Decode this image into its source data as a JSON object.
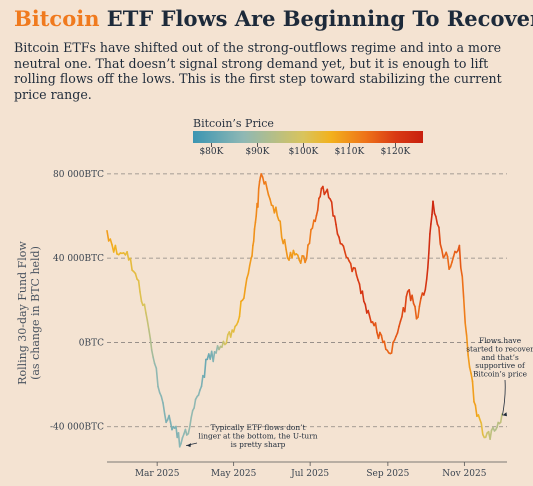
{
  "header": {
    "title_accent": "Bitcoin",
    "title_rest": " ETF Flows Are Beginning To Recover",
    "subtitle": "Bitcoin ETFs have shifted out of the strong-outflows regime and into a more neutral one. That doesn’t signal strong demand yet, but it is enough to lift rolling flows off the lows. This is the first step toward stabilizing the current price range."
  },
  "colors": {
    "accent": "#f07a1e",
    "background": "#f4e3d2",
    "price_scale": [
      "#3b95b2",
      "#8fb8b4",
      "#d9c45c",
      "#f2b11d",
      "#ee7319",
      "#d93a14",
      "#c8200f"
    ]
  },
  "legend": {
    "title": "Bitcoin’s Price",
    "ticks": [
      "$80K",
      "$90K",
      "$100K",
      "$110K",
      "$120K"
    ],
    "tick_values": [
      80000,
      90000,
      100000,
      110000,
      120000
    ],
    "range": [
      76000,
      126000
    ]
  },
  "chart_data": {
    "type": "line",
    "title": "Bitcoin ETF Flows Are Beginning To Recover",
    "ylabel": [
      "Rolling 30-day Fund Flow",
      "(as change in BTC held)"
    ],
    "ylim": [
      -52000,
      88000
    ],
    "xlim": [
      "2025-01-20",
      "2025-12-05"
    ],
    "yticks": [
      80000,
      40000,
      0,
      -40000
    ],
    "ytick_labels": [
      "80 000BTC",
      "40 000BTC",
      "0BTC",
      "-40 000BTC"
    ],
    "xticks": [
      "2025-03-01",
      "2025-05-01",
      "2025-07-01",
      "2025-09-01",
      "2025-11-01"
    ],
    "xtick_labels": [
      "Mar 2025",
      "May 2025",
      "Jul 2025",
      "Sep 2025",
      "Nov 2025"
    ],
    "grid": "horizontal dashed",
    "color_by": "Bitcoin’s Price",
    "series": [
      {
        "x": [
          "2025-01-20",
          "2025-01-28",
          "2025-02-05",
          "2025-02-13",
          "2025-02-20",
          "2025-02-27",
          "2025-03-07",
          "2025-03-14",
          "2025-03-20",
          "2025-03-27",
          "2025-04-03",
          "2025-04-10",
          "2025-04-17",
          "2025-04-24",
          "2025-05-01",
          "2025-05-08",
          "2025-05-15",
          "2025-05-19",
          "2025-05-23",
          "2025-05-30",
          "2025-06-06",
          "2025-06-13",
          "2025-06-20",
          "2025-06-27",
          "2025-07-04",
          "2025-07-10",
          "2025-07-17",
          "2025-07-24",
          "2025-07-31",
          "2025-08-07",
          "2025-08-14",
          "2025-08-21",
          "2025-08-28",
          "2025-09-04",
          "2025-09-11",
          "2025-09-18",
          "2025-09-25",
          "2025-10-02",
          "2025-10-07",
          "2025-10-14",
          "2025-10-21",
          "2025-10-28",
          "2025-11-04",
          "2025-11-11",
          "2025-11-18",
          "2025-11-25",
          "2025-12-01"
        ],
        "y": [
          53000,
          42000,
          43000,
          30000,
          14000,
          -10000,
          -34000,
          -40000,
          -48000,
          -40000,
          -25000,
          -8000,
          -5000,
          -1000,
          5000,
          20000,
          40000,
          60000,
          80000,
          68000,
          58000,
          40000,
          42000,
          38000,
          58000,
          73000,
          68000,
          50000,
          40000,
          32000,
          18000,
          8000,
          0,
          -5000,
          10000,
          25000,
          12000,
          30000,
          67000,
          44000,
          36000,
          46000,
          -6000,
          -35000,
          -45000,
          -42000,
          -34000
        ],
        "price": [
          104000,
          100000,
          97000,
          96000,
          92000,
          85000,
          83000,
          82000,
          84000,
          85000,
          84000,
          80000,
          84000,
          92000,
          96000,
          103000,
          104000,
          106000,
          110000,
          106000,
          104000,
          105000,
          103000,
          107000,
          109000,
          118000,
          119000,
          118000,
          116000,
          117000,
          121000,
          114000,
          112000,
          111000,
          115000,
          117000,
          110000,
          120000,
          124000,
          113000,
          110000,
          114000,
          104000,
          103000,
          92000,
          88000,
          90000
        ]
      }
    ],
    "annotations": [
      {
        "lines": [
          "Typically ETF flows don’t",
          "linger at the bottom, the U-turn",
          "is pretty sharp"
        ],
        "points_to": [
          "2025-03-20",
          -48000
        ]
      },
      {
        "lines": [
          "Flows have",
          "started to recover",
          "and that’s",
          "supportive of",
          "Bitcoin’s price"
        ],
        "points_to": [
          "2025-11-25",
          -36000
        ]
      }
    ]
  }
}
